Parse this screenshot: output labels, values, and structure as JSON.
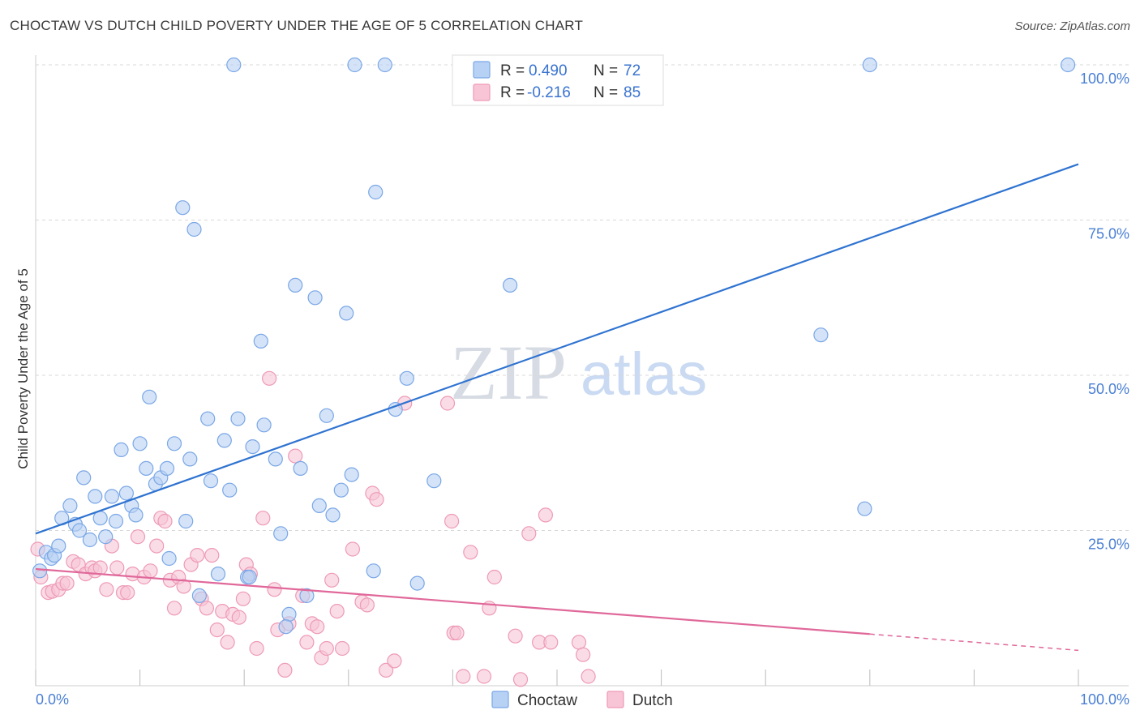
{
  "title": "CHOCTAW VS DUTCH CHILD POVERTY UNDER THE AGE OF 5 CORRELATION CHART",
  "source": "Source: ZipAtlas.com",
  "watermark": {
    "part1": "ZIP",
    "part2": "atlas"
  },
  "colors": {
    "choctaw_fill": "#b7d1f4",
    "choctaw_stroke": "#7aa7e6",
    "choctaw_line": "#2f73d1",
    "dutch_fill": "#f7c5d6",
    "dutch_stroke": "#ee9ab6",
    "dutch_line": "#e0689a",
    "axis_label": "#4a7fd4",
    "grid": "#d8d8d8"
  },
  "legend": {
    "rows": [
      {
        "r_label": "R =",
        "r_value": "0.490",
        "n_label": "N =",
        "n_value": "72"
      },
      {
        "r_label": "R =",
        "r_value": "-0.216",
        "n_label": "N =",
        "n_value": "85"
      }
    ]
  },
  "bottom_legend": [
    "Choctaw",
    "Dutch"
  ],
  "chart_data": {
    "type": "scatter",
    "title": "CHOCTAW VS DUTCH CHILD POVERTY UNDER THE AGE OF 5 CORRELATION CHART",
    "xlabel": "",
    "ylabel": "Child Poverty Under the Age of 5",
    "xlim": [
      0,
      100
    ],
    "ylim": [
      0,
      100
    ],
    "x_tick_labels": [
      "0.0%",
      "100.0%"
    ],
    "y_ticks": [
      25,
      50,
      75,
      100
    ],
    "y_tick_labels": [
      "25.0%",
      "50.0%",
      "75.0%",
      "100.0%"
    ],
    "grid": true,
    "legend_position": "top-center",
    "series": [
      {
        "name": "Choctaw",
        "r": 0.49,
        "n": 72,
        "trend": {
          "x": [
            0,
            100
          ],
          "y": [
            24.5,
            84.0
          ],
          "dashed_from_x": null
        },
        "points": [
          [
            0.4,
            18.5
          ],
          [
            1.0,
            21.5
          ],
          [
            1.5,
            20.5
          ],
          [
            1.8,
            21.0
          ],
          [
            2.2,
            22.5
          ],
          [
            2.5,
            27.0
          ],
          [
            3.3,
            29.0
          ],
          [
            3.8,
            26.0
          ],
          [
            4.2,
            25.0
          ],
          [
            4.6,
            33.5
          ],
          [
            5.2,
            23.5
          ],
          [
            5.7,
            30.5
          ],
          [
            6.2,
            27.0
          ],
          [
            6.7,
            24.0
          ],
          [
            7.3,
            30.5
          ],
          [
            7.7,
            26.5
          ],
          [
            8.2,
            38.0
          ],
          [
            8.7,
            31.0
          ],
          [
            9.2,
            29.0
          ],
          [
            9.6,
            27.5
          ],
          [
            10.0,
            39.0
          ],
          [
            10.6,
            35.0
          ],
          [
            10.9,
            46.5
          ],
          [
            11.5,
            32.5
          ],
          [
            12.0,
            33.5
          ],
          [
            12.6,
            35.0
          ],
          [
            12.8,
            20.5
          ],
          [
            13.3,
            39.0
          ],
          [
            14.1,
            77.0
          ],
          [
            14.4,
            26.5
          ],
          [
            14.8,
            36.5
          ],
          [
            15.2,
            73.5
          ],
          [
            15.7,
            14.5
          ],
          [
            16.5,
            43.0
          ],
          [
            16.8,
            33.0
          ],
          [
            17.5,
            18.0
          ],
          [
            18.1,
            39.5
          ],
          [
            18.6,
            31.5
          ],
          [
            19.0,
            100
          ],
          [
            19.4,
            43.0
          ],
          [
            20.3,
            17.5
          ],
          [
            20.5,
            17.5
          ],
          [
            20.8,
            38.5
          ],
          [
            21.6,
            55.5
          ],
          [
            21.9,
            42.0
          ],
          [
            23.0,
            36.5
          ],
          [
            23.5,
            24.5
          ],
          [
            24.3,
            11.5
          ],
          [
            24.9,
            64.5
          ],
          [
            24.0,
            9.5
          ],
          [
            25.4,
            35.0
          ],
          [
            26.0,
            14.5
          ],
          [
            26.8,
            62.5
          ],
          [
            27.2,
            29.0
          ],
          [
            27.9,
            43.5
          ],
          [
            28.5,
            27.5
          ],
          [
            29.3,
            31.5
          ],
          [
            29.8,
            60.0
          ],
          [
            30.3,
            34.0
          ],
          [
            30.6,
            100
          ],
          [
            32.6,
            79.5
          ],
          [
            32.4,
            18.5
          ],
          [
            33.5,
            100
          ],
          [
            34.5,
            44.5
          ],
          [
            35.6,
            49.5
          ],
          [
            36.6,
            16.5
          ],
          [
            38.2,
            33.0
          ],
          [
            45.5,
            64.5
          ],
          [
            75.3,
            56.5
          ],
          [
            80.0,
            100
          ],
          [
            79.5,
            28.5
          ],
          [
            99.0,
            100
          ]
        ]
      },
      {
        "name": "Dutch",
        "r": -0.216,
        "n": 85,
        "trend": {
          "x": [
            0,
            100
          ],
          "y": [
            18.8,
            5.7
          ],
          "dashed_from_x": 80
        },
        "points": [
          [
            0.2,
            22.0
          ],
          [
            0.5,
            17.5
          ],
          [
            1.2,
            15.0
          ],
          [
            1.6,
            15.2
          ],
          [
            2.2,
            15.5
          ],
          [
            2.6,
            16.5
          ],
          [
            3.0,
            16.5
          ],
          [
            3.6,
            20.0
          ],
          [
            4.1,
            19.5
          ],
          [
            4.8,
            18.0
          ],
          [
            5.4,
            19.0
          ],
          [
            5.7,
            18.5
          ],
          [
            6.2,
            19.0
          ],
          [
            6.8,
            15.5
          ],
          [
            7.3,
            22.5
          ],
          [
            7.8,
            19.0
          ],
          [
            8.4,
            15.0
          ],
          [
            8.8,
            15.0
          ],
          [
            9.3,
            18.0
          ],
          [
            9.8,
            24.0
          ],
          [
            10.4,
            17.5
          ],
          [
            11.0,
            18.5
          ],
          [
            11.6,
            22.5
          ],
          [
            12.0,
            27.0
          ],
          [
            12.4,
            26.5
          ],
          [
            12.9,
            17.0
          ],
          [
            13.3,
            12.5
          ],
          [
            13.7,
            17.5
          ],
          [
            14.2,
            16.0
          ],
          [
            14.9,
            19.5
          ],
          [
            15.5,
            21.0
          ],
          [
            15.9,
            14.0
          ],
          [
            16.4,
            12.5
          ],
          [
            16.9,
            21.0
          ],
          [
            17.4,
            9.0
          ],
          [
            17.9,
            12.0
          ],
          [
            18.4,
            7.0
          ],
          [
            18.9,
            11.5
          ],
          [
            19.5,
            11.0
          ],
          [
            19.9,
            14.0
          ],
          [
            20.2,
            19.5
          ],
          [
            20.6,
            18.0
          ],
          [
            21.2,
            6.0
          ],
          [
            21.8,
            27.0
          ],
          [
            22.4,
            49.5
          ],
          [
            22.9,
            15.5
          ],
          [
            23.2,
            9.0
          ],
          [
            23.9,
            2.5
          ],
          [
            24.3,
            10.0
          ],
          [
            24.9,
            37.0
          ],
          [
            25.6,
            14.5
          ],
          [
            26.0,
            7.0
          ],
          [
            26.5,
            10.0
          ],
          [
            27.0,
            9.5
          ],
          [
            27.4,
            4.5
          ],
          [
            27.9,
            6.0
          ],
          [
            28.4,
            17.0
          ],
          [
            28.9,
            12.0
          ],
          [
            29.4,
            6.0
          ],
          [
            30.4,
            22.0
          ],
          [
            31.3,
            13.5
          ],
          [
            31.8,
            13.0
          ],
          [
            32.3,
            31.0
          ],
          [
            32.7,
            30.0
          ],
          [
            33.6,
            2.5
          ],
          [
            34.4,
            4.0
          ],
          [
            35.4,
            45.5
          ],
          [
            39.5,
            45.5
          ],
          [
            39.9,
            26.5
          ],
          [
            40.1,
            8.5
          ],
          [
            40.4,
            8.5
          ],
          [
            41.0,
            1.5
          ],
          [
            41.7,
            21.5
          ],
          [
            43.0,
            1.5
          ],
          [
            43.5,
            12.5
          ],
          [
            44.0,
            17.5
          ],
          [
            46.0,
            8.0
          ],
          [
            46.5,
            1.0
          ],
          [
            47.3,
            24.5
          ],
          [
            48.3,
            7.0
          ],
          [
            48.9,
            27.5
          ],
          [
            49.4,
            7.0
          ],
          [
            52.1,
            7.0
          ],
          [
            52.5,
            5.0
          ],
          [
            53.0,
            1.5
          ]
        ]
      }
    ]
  }
}
